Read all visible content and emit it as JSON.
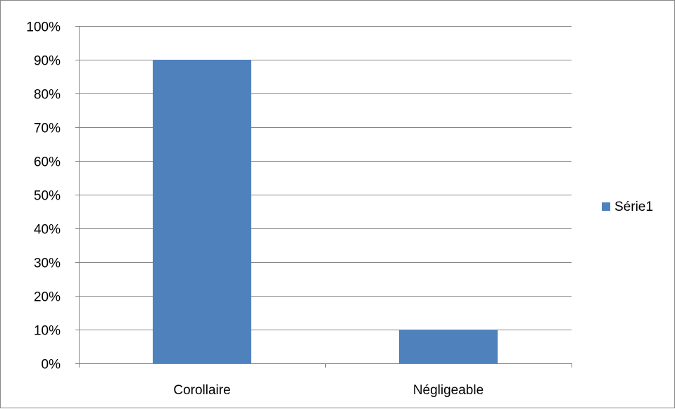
{
  "chart_data": {
    "type": "bar",
    "categories": [
      "Corollaire",
      "Négligeable"
    ],
    "series": [
      {
        "name": "Série1",
        "values": [
          0.9,
          0.1
        ],
        "color": "#4F81BD"
      }
    ],
    "title": "",
    "xlabel": "",
    "ylabel": "",
    "ylim": [
      0,
      1
    ],
    "ytick_step": 0.1,
    "ytick_format": "percent",
    "grid": true,
    "legend_position": "right",
    "gridline_color": "#868686",
    "axis_color": "#868686"
  }
}
